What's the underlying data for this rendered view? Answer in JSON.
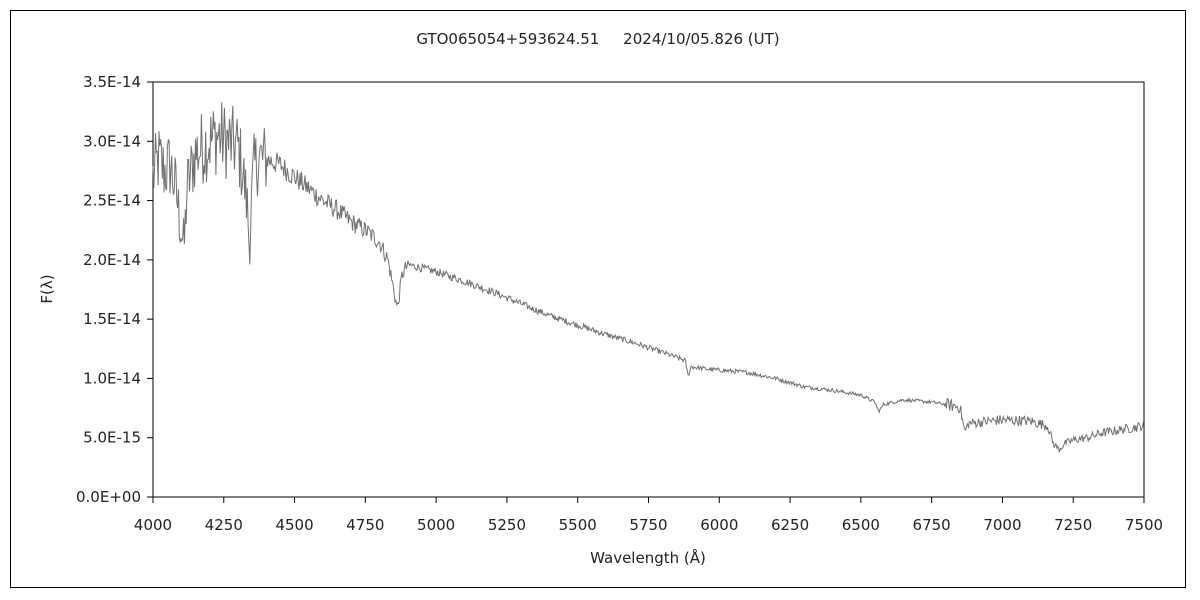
{
  "chart_data": {
    "type": "line",
    "title": "GTO065054+593624.51     2024/10/05.826 (UT)",
    "xlabel": "Wavelength (Å)",
    "ylabel": "F(λ)",
    "xlim": [
      4000,
      7500
    ],
    "ylim": [
      0,
      3.5e-14
    ],
    "x_ticks": [
      4000,
      4250,
      4500,
      4750,
      5000,
      5250,
      5500,
      5750,
      6000,
      6250,
      6500,
      6750,
      7000,
      7250,
      7500
    ],
    "x_tick_labels": [
      "4000",
      "4250",
      "4500",
      "4750",
      "5000",
      "5250",
      "5500",
      "5750",
      "6000",
      "6250",
      "6500",
      "6750",
      "7000",
      "7250",
      "7500"
    ],
    "y_ticks": [
      0,
      5e-15,
      1e-14,
      1.5e-14,
      2e-14,
      2.5e-14,
      3e-14,
      3.5e-14
    ],
    "y_tick_labels": [
      "0.0E+00",
      "5.0E-15",
      "1.0E-14",
      "1.5E-14",
      "2.0E-14",
      "2.5E-14",
      "3.0E-14",
      "3.5E-14"
    ],
    "grid": false,
    "legend": "none",
    "line_color": "#707070",
    "series": [
      {
        "x": [
          4000,
          4020,
          4040,
          4060,
          4080,
          4100,
          4110,
          4120,
          4150,
          4200,
          4230,
          4260,
          4300,
          4320,
          4335,
          4340,
          4345,
          4355,
          4370,
          4400,
          4450,
          4500,
          4550,
          4600,
          4650,
          4700,
          4750,
          4800,
          4830,
          4850,
          4860,
          4865,
          4870,
          4880,
          4900,
          4950,
          5000,
          5100,
          5200,
          5300,
          5400,
          5500,
          5600,
          5700,
          5800,
          5880,
          5890,
          5900,
          5950,
          6000,
          6100,
          6200,
          6300,
          6400,
          6500,
          6550,
          6563,
          6580,
          6650,
          6750,
          6850,
          6867,
          6880,
          6950,
          7000,
          7100,
          7160,
          7180,
          7200,
          7220,
          7250,
          7300,
          7350,
          7400,
          7450,
          7500
        ],
        "y": [
          2.7e-14,
          2.85e-14,
          2.75e-14,
          2.8e-14,
          2.6e-14,
          2.25e-14,
          2.1e-14,
          2.6e-14,
          2.9e-14,
          3e-14,
          3.05e-14,
          3e-14,
          2.95e-14,
          2.7e-14,
          2.4e-14,
          2.1e-14,
          2.35e-14,
          2.75e-14,
          2.85e-14,
          2.85e-14,
          2.8e-14,
          2.7e-14,
          2.6e-14,
          2.5e-14,
          2.42e-14,
          2.32e-14,
          2.25e-14,
          2.15e-14,
          2e-14,
          1.75e-14,
          1.62e-14,
          1.6e-14,
          1.7e-14,
          1.88e-14,
          1.96e-14,
          1.93e-14,
          1.9e-14,
          1.82e-14,
          1.73e-14,
          1.63e-14,
          1.53e-14,
          1.45e-14,
          1.37e-14,
          1.3e-14,
          1.22e-14,
          1.15e-14,
          1.02e-14,
          1.1e-14,
          1.08e-14,
          1.07e-14,
          1.05e-14,
          1e-14,
          9.3e-15,
          9e-15,
          8.6e-15,
          8e-15,
          7.2e-15,
          7.8e-15,
          8.2e-15,
          8e-15,
          7.6e-15,
          5.5e-15,
          6.2e-15,
          6.4e-15,
          6.5e-15,
          6.4e-15,
          6e-15,
          4.5e-15,
          4e-15,
          4.5e-15,
          4.8e-15,
          5e-15,
          5.4e-15,
          5.6e-15,
          5.8e-15,
          6e-15
        ]
      }
    ]
  }
}
